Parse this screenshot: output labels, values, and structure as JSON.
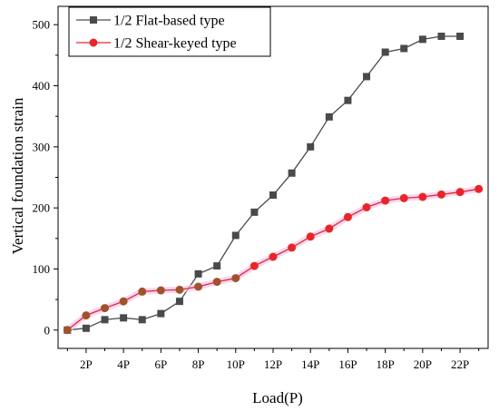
{
  "chart_data": {
    "type": "line",
    "xlabel": "Load(P)",
    "ylabel": "Vertical foundation strain",
    "x": [
      1,
      2,
      3,
      4,
      5,
      6,
      7,
      8,
      9,
      10,
      11,
      12,
      13,
      14,
      15,
      16,
      17,
      18,
      19,
      20,
      21,
      22,
      23
    ],
    "xlim": [
      0.5,
      23.5
    ],
    "ylim": [
      -30,
      530
    ],
    "x_ticks": [
      2,
      4,
      6,
      8,
      10,
      12,
      14,
      16,
      18,
      20,
      22
    ],
    "x_tick_labels": [
      "2P",
      "4P",
      "6P",
      "8P",
      "10P",
      "12P",
      "14P",
      "16P",
      "18P",
      "20P",
      "22P"
    ],
    "y_ticks": [
      0,
      100,
      200,
      300,
      400,
      500
    ],
    "y_tick_labels": [
      "0",
      "100",
      "200",
      "300",
      "400",
      "500"
    ],
    "legend_position": "top-left",
    "series": [
      {
        "name": "1/2 Flat-based type",
        "color": "#4a4a4a",
        "marker": "square",
        "x": [
          1,
          2,
          3,
          4,
          5,
          6,
          7,
          8,
          9,
          10,
          11,
          12,
          13,
          14,
          15,
          16,
          17,
          18,
          19,
          20,
          21,
          22
        ],
        "values": [
          0,
          3,
          17,
          20,
          17,
          27,
          47,
          92,
          105,
          155,
          193,
          221,
          257,
          300,
          349,
          376,
          415,
          455,
          461,
          476,
          481,
          481
        ]
      },
      {
        "name": "1/2 Shear-keyed type",
        "color": "#e8262a",
        "marker": "circle",
        "x": [
          1,
          2,
          3,
          4,
          5,
          6,
          7,
          8,
          9,
          10,
          11,
          12,
          13,
          14,
          15,
          16,
          17,
          18,
          19,
          20,
          21,
          22,
          23
        ],
        "values": [
          0,
          24,
          36,
          47,
          63,
          65,
          66,
          71,
          79,
          85,
          105,
          120,
          135,
          153,
          166,
          185,
          201,
          212,
          216,
          218,
          222,
          226,
          231
        ]
      }
    ]
  }
}
